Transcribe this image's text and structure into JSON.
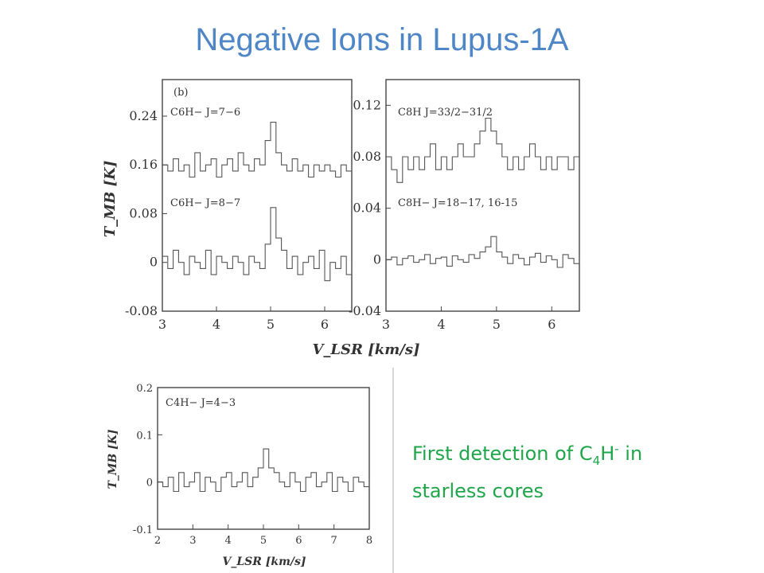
{
  "slide": {
    "title": "Negative Ions in Lupus-1A",
    "caption_prefix": "First detection of C",
    "caption_sub": "4",
    "caption_mid": "H",
    "caption_sup": "-",
    "caption_line1_end": " in",
    "caption_line2": "starless cores"
  },
  "chart_data": [
    {
      "type": "line",
      "panel_tag": "(b)",
      "step": true,
      "xlabel": "V_LSR [km/s]",
      "ylabel": "T_MB [K]",
      "xlim": [
        3,
        6.5
      ],
      "ylim": [
        -0.08,
        0.3
      ],
      "xticks": [
        "3",
        "4",
        "5",
        "6"
      ],
      "yticks": [
        "-0.08",
        "0",
        "0.08",
        "0.16",
        "0.24"
      ],
      "series": [
        {
          "name": "C6H− J=7−6",
          "x": [
            3.0,
            3.1,
            3.2,
            3.3,
            3.4,
            3.5,
            3.6,
            3.7,
            3.8,
            3.9,
            4.0,
            4.1,
            4.2,
            4.3,
            4.4,
            4.5,
            4.6,
            4.7,
            4.8,
            4.9,
            5.0,
            5.1,
            5.2,
            5.3,
            5.4,
            5.5,
            5.6,
            5.7,
            5.8,
            5.9,
            6.0,
            6.1,
            6.2,
            6.3,
            6.4,
            6.5
          ],
          "y": [
            0.16,
            0.15,
            0.17,
            0.15,
            0.16,
            0.14,
            0.18,
            0.15,
            0.16,
            0.17,
            0.14,
            0.16,
            0.17,
            0.15,
            0.18,
            0.16,
            0.15,
            0.17,
            0.16,
            0.2,
            0.23,
            0.18,
            0.16,
            0.15,
            0.17,
            0.15,
            0.16,
            0.14,
            0.16,
            0.15,
            0.16,
            0.15,
            0.14,
            0.16,
            0.15,
            0.16
          ]
        },
        {
          "name": "C6H− J=8−7",
          "x": [
            3.0,
            3.1,
            3.2,
            3.3,
            3.4,
            3.5,
            3.6,
            3.7,
            3.8,
            3.9,
            4.0,
            4.1,
            4.2,
            4.3,
            4.4,
            4.5,
            4.6,
            4.7,
            4.8,
            4.9,
            5.0,
            5.1,
            5.2,
            5.3,
            5.4,
            5.5,
            5.6,
            5.7,
            5.8,
            5.9,
            6.0,
            6.1,
            6.2,
            6.3,
            6.4,
            6.5
          ],
          "y": [
            0.01,
            -0.01,
            0.02,
            0.0,
            -0.02,
            0.01,
            0.0,
            -0.01,
            0.02,
            -0.02,
            0.01,
            0.0,
            -0.01,
            0.01,
            0.0,
            -0.02,
            0.01,
            0.0,
            -0.01,
            0.03,
            0.09,
            0.04,
            0.02,
            -0.01,
            0.01,
            -0.02,
            0.0,
            0.01,
            -0.01,
            0.02,
            -0.03,
            0.0,
            -0.01,
            0.01,
            -0.02,
            0.0
          ]
        }
      ]
    },
    {
      "type": "line",
      "step": true,
      "xlabel": "V_LSR [km/s]",
      "xlim": [
        3,
        6.5
      ],
      "ylim": [
        -0.04,
        0.14
      ],
      "xticks": [
        "3",
        "4",
        "5",
        "6"
      ],
      "yticks": [
        "-0.04",
        "0",
        "0.04",
        "0.08",
        "0.12"
      ],
      "series": [
        {
          "name": "C8H J=33/2−31/2",
          "x": [
            3.0,
            3.1,
            3.2,
            3.3,
            3.4,
            3.5,
            3.6,
            3.7,
            3.8,
            3.9,
            4.0,
            4.1,
            4.2,
            4.3,
            4.4,
            4.5,
            4.6,
            4.7,
            4.8,
            4.9,
            5.0,
            5.1,
            5.2,
            5.3,
            5.4,
            5.5,
            5.6,
            5.7,
            5.8,
            5.9,
            6.0,
            6.1,
            6.2,
            6.3,
            6.4,
            6.5
          ],
          "y": [
            0.08,
            0.07,
            0.06,
            0.08,
            0.07,
            0.08,
            0.07,
            0.08,
            0.09,
            0.07,
            0.08,
            0.07,
            0.08,
            0.09,
            0.08,
            0.08,
            0.09,
            0.1,
            0.11,
            0.1,
            0.09,
            0.08,
            0.07,
            0.08,
            0.07,
            0.08,
            0.09,
            0.08,
            0.07,
            0.08,
            0.07,
            0.08,
            0.08,
            0.07,
            0.08,
            0.08
          ]
        },
        {
          "name": "C8H− J=18−17, 16-15",
          "x": [
            3.0,
            3.1,
            3.2,
            3.3,
            3.4,
            3.5,
            3.6,
            3.7,
            3.8,
            3.9,
            4.0,
            4.1,
            4.2,
            4.3,
            4.4,
            4.5,
            4.6,
            4.7,
            4.8,
            4.9,
            5.0,
            5.1,
            5.2,
            5.3,
            5.4,
            5.5,
            5.6,
            5.7,
            5.8,
            5.9,
            6.0,
            6.1,
            6.2,
            6.3,
            6.4,
            6.5
          ],
          "y": [
            0.0,
            0.002,
            -0.004,
            0.001,
            0.003,
            -0.002,
            0.0,
            0.004,
            -0.003,
            0.001,
            0.002,
            -0.005,
            0.003,
            0.0,
            -0.002,
            0.004,
            0.001,
            0.006,
            0.01,
            0.018,
            0.006,
            0.002,
            -0.003,
            0.004,
            0.001,
            -0.004,
            0.002,
            0.005,
            -0.002,
            0.003,
            0.0,
            -0.006,
            0.004,
            0.001,
            -0.003,
            0.002
          ]
        }
      ]
    },
    {
      "type": "line",
      "step": true,
      "xlabel": "V_LSR [km/s]",
      "ylabel": "T_MB [K]",
      "xlim": [
        2,
        8
      ],
      "ylim": [
        -0.1,
        0.2
      ],
      "xticks": [
        "2",
        "3",
        "4",
        "5",
        "6",
        "7",
        "8"
      ],
      "yticks": [
        "-0.1",
        "0",
        "0.1",
        "0.2"
      ],
      "series": [
        {
          "name": "C4H− J=4−3",
          "x": [
            2.0,
            2.15,
            2.3,
            2.45,
            2.6,
            2.75,
            2.9,
            3.05,
            3.2,
            3.35,
            3.5,
            3.65,
            3.8,
            3.95,
            4.1,
            4.25,
            4.4,
            4.55,
            4.7,
            4.85,
            5.0,
            5.15,
            5.3,
            5.45,
            5.6,
            5.75,
            5.9,
            6.05,
            6.2,
            6.35,
            6.5,
            6.65,
            6.8,
            6.95,
            7.1,
            7.25,
            7.4,
            7.55,
            7.7,
            7.85,
            8.0
          ],
          "y": [
            0.0,
            -0.01,
            0.01,
            -0.02,
            0.02,
            -0.01,
            0.0,
            0.02,
            -0.02,
            0.01,
            0.0,
            -0.02,
            0.01,
            0.02,
            -0.01,
            0.0,
            0.02,
            -0.01,
            0.01,
            0.03,
            0.07,
            0.03,
            0.02,
            0.0,
            -0.01,
            0.02,
            0.0,
            -0.02,
            0.01,
            0.02,
            -0.01,
            0.0,
            0.02,
            -0.02,
            0.01,
            0.0,
            -0.02,
            0.01,
            0.0,
            -0.01,
            0.0
          ]
        }
      ]
    }
  ]
}
